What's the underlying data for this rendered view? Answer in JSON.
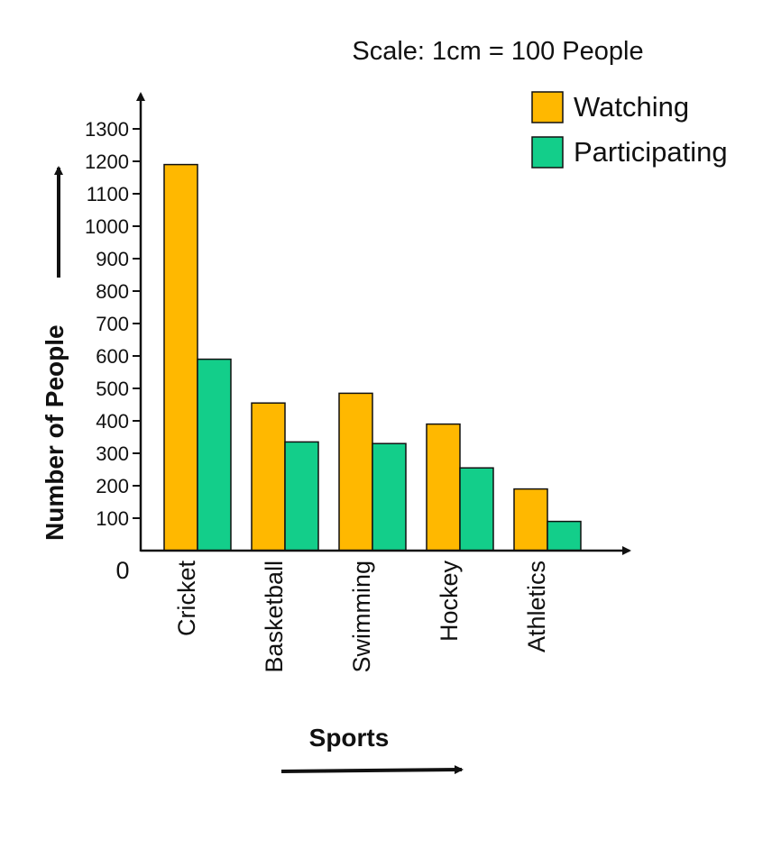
{
  "chart_data": {
    "type": "bar",
    "scale_note": "Scale: 1cm = 100 People",
    "ylabel": "Number of People",
    "xlabel": "Sports",
    "origin_label": "0",
    "categories": [
      "Cricket",
      "Basketball",
      "Swimming",
      "Hockey",
      "Athletics"
    ],
    "series": [
      {
        "name": "Watching",
        "values": [
          1190,
          455,
          485,
          390,
          190
        ],
        "color": "#FFB800"
      },
      {
        "name": "Participating",
        "values": [
          590,
          335,
          330,
          255,
          90
        ],
        "color": "#13CE8A"
      }
    ],
    "yticks": [
      100,
      200,
      300,
      400,
      500,
      600,
      700,
      800,
      900,
      1000,
      1100,
      1200,
      1300
    ],
    "ylim": [
      0,
      1300
    ],
    "grid": false,
    "legend_position": "top-right"
  }
}
